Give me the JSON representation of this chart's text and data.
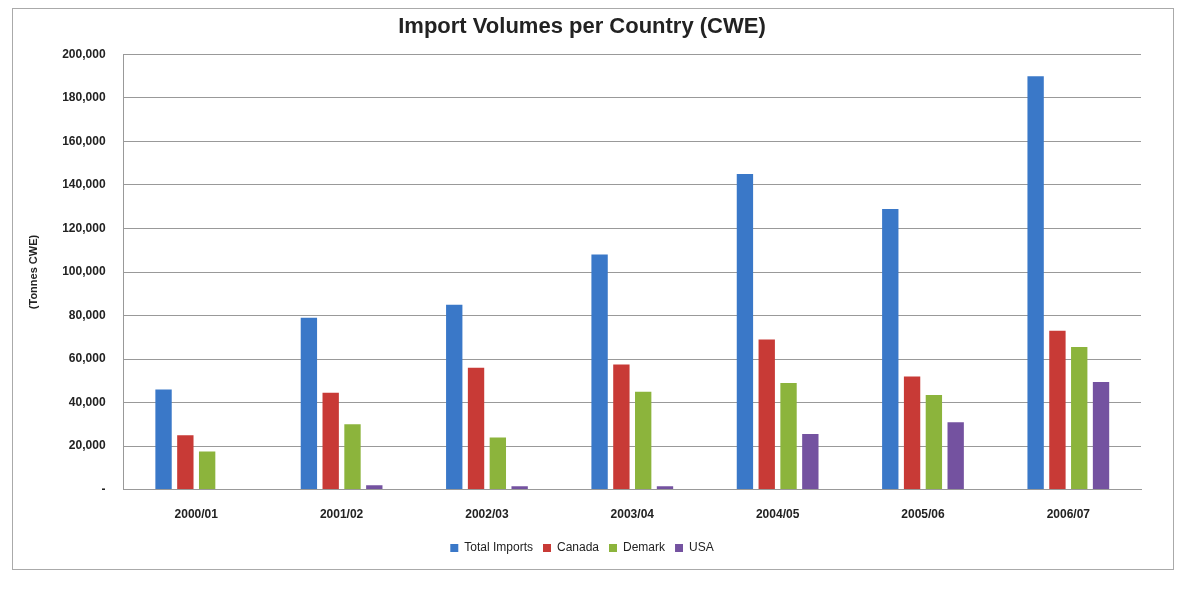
{
  "chart_data": {
    "type": "bar",
    "title": "Import Volumes per Country (CWE)",
    "ylabel": "(Tonnes CWE)",
    "categories": [
      "2000/01",
      "2001/02",
      "2002/03",
      "2003/04",
      "2004/05",
      "2005/06",
      "2006/07"
    ],
    "series": [
      {
        "name": "Total Imports",
        "color": "#3a78c8",
        "values": [
          46000,
          79000,
          85000,
          108000,
          145000,
          129000,
          190000
        ]
      },
      {
        "name": "Canada",
        "color": "#c83a36",
        "values": [
          25000,
          44500,
          56000,
          57500,
          69000,
          52000,
          73000
        ]
      },
      {
        "name": "Demark",
        "color": "#8cb43c",
        "values": [
          17500,
          30000,
          24000,
          45000,
          49000,
          43500,
          65500
        ]
      },
      {
        "name": "USA",
        "color": "#7452a0",
        "values": [
          0,
          2000,
          1500,
          1500,
          25500,
          31000,
          49500
        ]
      }
    ],
    "ylim": [
      0,
      200000
    ],
    "yticks": [
      {
        "value": 0,
        "label": "-"
      },
      {
        "value": 20000,
        "label": "20,000"
      },
      {
        "value": 40000,
        "label": "40,000"
      },
      {
        "value": 60000,
        "label": "60,000"
      },
      {
        "value": 80000,
        "label": "80,000"
      },
      {
        "value": 100000,
        "label": "100,000"
      },
      {
        "value": 120000,
        "label": "120,000"
      },
      {
        "value": 140000,
        "label": "140,000"
      },
      {
        "value": 160000,
        "label": "160,000"
      },
      {
        "value": 180000,
        "label": "180,000"
      },
      {
        "value": 200000,
        "label": "200,000"
      }
    ],
    "grid": "y",
    "legend": "bottom"
  }
}
